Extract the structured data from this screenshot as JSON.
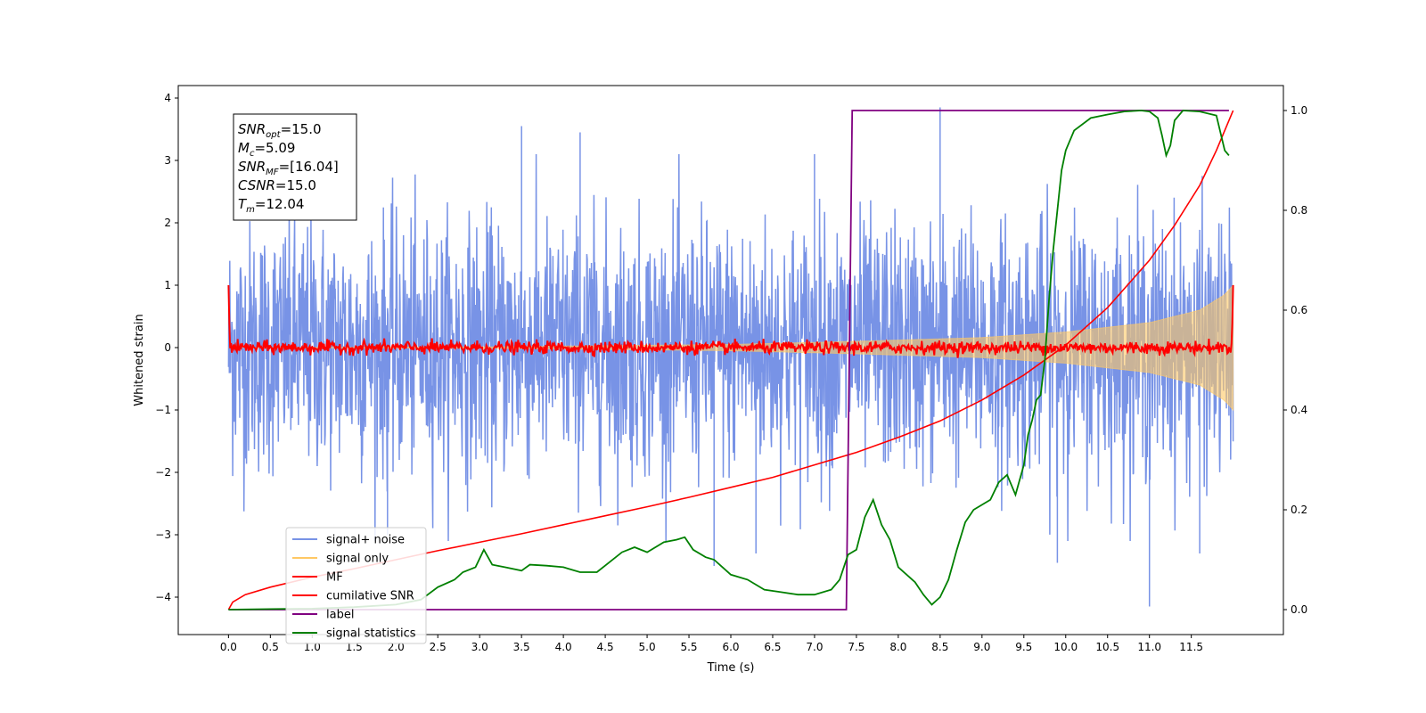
{
  "chart_data": {
    "type": "line",
    "xlabel": "Time (s)",
    "ylabel": "Whitened strain",
    "xlim": [
      -0.6,
      12.6
    ],
    "ylim": [
      -4.6,
      4.2
    ],
    "y2lim": [
      -0.05,
      1.05
    ],
    "xticks": [
      0.0,
      0.5,
      1.0,
      1.5,
      2.0,
      2.5,
      3.0,
      3.5,
      4.0,
      4.5,
      5.0,
      5.5,
      6.0,
      6.5,
      7.0,
      7.5,
      8.0,
      8.5,
      9.0,
      9.5,
      10.0,
      10.5,
      11.0,
      11.5
    ],
    "yticks": [
      -4,
      -3,
      -2,
      -1,
      0,
      1,
      2,
      3,
      4
    ],
    "y2ticks": [
      0.0,
      0.2,
      0.4,
      0.6,
      0.8,
      1.0
    ],
    "legend_position": "lower-left",
    "annotation": {
      "lines": [
        {
          "var": "SNR",
          "sub": "opt",
          "value": "=15.0"
        },
        {
          "var": "M",
          "sub": "c",
          "value": "=5.09"
        },
        {
          "var": "SNR",
          "sub": "MF",
          "value": "=[16.04]"
        },
        {
          "var": "CSNR",
          "sub": "",
          "value": "=15.0"
        },
        {
          "var": "T",
          "sub": "m",
          "value": "=12.04"
        }
      ]
    },
    "series": [
      {
        "name": "signal+ noise",
        "color": "#7893e6",
        "axis": "left",
        "style": "noise",
        "x_range": [
          0.0,
          12.0
        ],
        "amplitude_std": 1.0,
        "peaks": [
          [
            3.5,
            3.55
          ],
          [
            4.2,
            3.45
          ],
          [
            7.0,
            3.1
          ],
          [
            8.5,
            3.85
          ],
          [
            11.0,
            -4.15
          ],
          [
            6.3,
            -3.3
          ],
          [
            9.9,
            -3.45
          ],
          [
            11.6,
            -3.3
          ],
          [
            5.8,
            -3.5
          ],
          [
            1.9,
            -3.0
          ]
        ]
      },
      {
        "name": "signal only",
        "color": "#ffc864",
        "axis": "left",
        "style": "chirp",
        "x_range": [
          0.0,
          12.0
        ],
        "envelope": [
          [
            0.0,
            0.0
          ],
          [
            3.0,
            0.01
          ],
          [
            6.0,
            0.05
          ],
          [
            7.5,
            0.1
          ],
          [
            9.0,
            0.16
          ],
          [
            10.0,
            0.25
          ],
          [
            11.0,
            0.4
          ],
          [
            11.6,
            0.6
          ],
          [
            11.9,
            0.85
          ],
          [
            12.0,
            1.0
          ]
        ]
      },
      {
        "name": "MF",
        "color": "#ff0000",
        "axis": "left",
        "style": "mf",
        "x_range": [
          0.0,
          12.0
        ],
        "edge_values": [
          1.0,
          1.0
        ],
        "amplitude": 0.05
      },
      {
        "name": "cumilative SNR",
        "color": "#ff0000",
        "axis": "right",
        "x": [
          0.0,
          0.05,
          0.2,
          0.5,
          1.0,
          1.5,
          2.0,
          2.5,
          3.0,
          3.5,
          4.0,
          4.5,
          5.0,
          5.5,
          6.0,
          6.5,
          7.0,
          7.5,
          8.0,
          8.5,
          9.0,
          9.5,
          10.0,
          10.5,
          11.0,
          11.3,
          11.6,
          11.8,
          12.0
        ],
        "y": [
          0.0,
          0.015,
          0.03,
          0.045,
          0.065,
          0.082,
          0.1,
          0.118,
          0.135,
          0.152,
          0.17,
          0.188,
          0.206,
          0.225,
          0.245,
          0.265,
          0.29,
          0.315,
          0.345,
          0.378,
          0.42,
          0.47,
          0.53,
          0.605,
          0.7,
          0.77,
          0.85,
          0.92,
          1.0
        ]
      },
      {
        "name": "label",
        "color": "#800080",
        "axis": "right",
        "x": [
          0.0,
          7.38,
          7.45,
          11.95
        ],
        "y": [
          0.0,
          0.0,
          1.0,
          1.0
        ]
      },
      {
        "name": "signal statistics",
        "color": "#008000",
        "axis": "right",
        "x": [
          0.0,
          0.5,
          1.0,
          1.5,
          2.0,
          2.3,
          2.5,
          2.7,
          2.8,
          2.95,
          3.05,
          3.15,
          3.3,
          3.5,
          3.6,
          3.8,
          4.0,
          4.2,
          4.4,
          4.55,
          4.7,
          4.85,
          5.0,
          5.2,
          5.35,
          5.45,
          5.55,
          5.7,
          5.8,
          6.0,
          6.2,
          6.4,
          6.6,
          6.8,
          7.0,
          7.2,
          7.3,
          7.4,
          7.5,
          7.6,
          7.7,
          7.8,
          7.9,
          8.0,
          8.1,
          8.2,
          8.3,
          8.4,
          8.5,
          8.6,
          8.7,
          8.8,
          8.9,
          9.0,
          9.1,
          9.2,
          9.3,
          9.4,
          9.5,
          9.55,
          9.6,
          9.65,
          9.7,
          9.75,
          9.8,
          9.85,
          9.9,
          9.95,
          10.0,
          10.1,
          10.3,
          10.5,
          10.7,
          10.9,
          11.0,
          11.1,
          11.15,
          11.2,
          11.25,
          11.3,
          11.4,
          11.6,
          11.8,
          11.9,
          11.95
        ],
        "y": [
          0.0,
          0.001,
          0.002,
          0.005,
          0.01,
          0.02,
          0.045,
          0.06,
          0.075,
          0.085,
          0.12,
          0.09,
          0.085,
          0.078,
          0.09,
          0.088,
          0.085,
          0.075,
          0.075,
          0.095,
          0.115,
          0.125,
          0.115,
          0.135,
          0.14,
          0.145,
          0.12,
          0.105,
          0.1,
          0.07,
          0.06,
          0.04,
          0.035,
          0.03,
          0.03,
          0.04,
          0.06,
          0.11,
          0.12,
          0.185,
          0.22,
          0.17,
          0.14,
          0.085,
          0.07,
          0.055,
          0.03,
          0.01,
          0.025,
          0.06,
          0.12,
          0.175,
          0.2,
          0.21,
          0.22,
          0.255,
          0.27,
          0.23,
          0.29,
          0.35,
          0.38,
          0.42,
          0.43,
          0.5,
          0.62,
          0.72,
          0.8,
          0.88,
          0.92,
          0.96,
          0.985,
          0.992,
          0.998,
          1.0,
          0.998,
          0.985,
          0.95,
          0.91,
          0.93,
          0.98,
          1.0,
          0.998,
          0.99,
          0.92,
          0.91
        ]
      }
    ]
  }
}
